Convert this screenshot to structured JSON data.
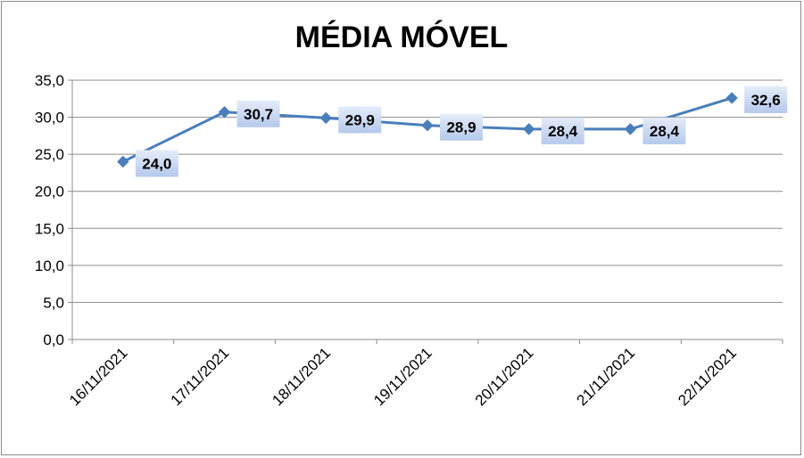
{
  "chart_data": {
    "type": "line",
    "title": "MÉDIA MÓVEL",
    "xlabel": "",
    "ylabel": "",
    "categories": [
      "16/11/2021",
      "17/11/2021",
      "18/11/2021",
      "19/11/2021",
      "20/11/2021",
      "21/11/2021",
      "22/11/2021"
    ],
    "series": [
      {
        "values": [
          24.0,
          30.7,
          29.9,
          28.9,
          28.4,
          28.4,
          32.6
        ],
        "data_labels": [
          "24,0",
          "30,7",
          "29,9",
          "28,9",
          "28,4",
          "28,4",
          "32,6"
        ],
        "color": "#4a7ebb"
      }
    ],
    "ylim": [
      0,
      35
    ],
    "yticks": [
      0,
      5,
      10,
      15,
      20,
      25,
      30,
      35
    ],
    "ytick_labels": [
      "0,0",
      "5,0",
      "10,0",
      "15,0",
      "20,0",
      "25,0",
      "30,0",
      "35,0"
    ],
    "grid": true,
    "legend": "none",
    "marker": "diamond"
  },
  "colors": {
    "line": "#4a7ebb",
    "marker": "#4a7ebb",
    "grid": "#8c8c8c",
    "axis": "#8c8c8c",
    "label_box_light": "#dbe5f6",
    "label_box_dark": "#b3c7ea"
  }
}
